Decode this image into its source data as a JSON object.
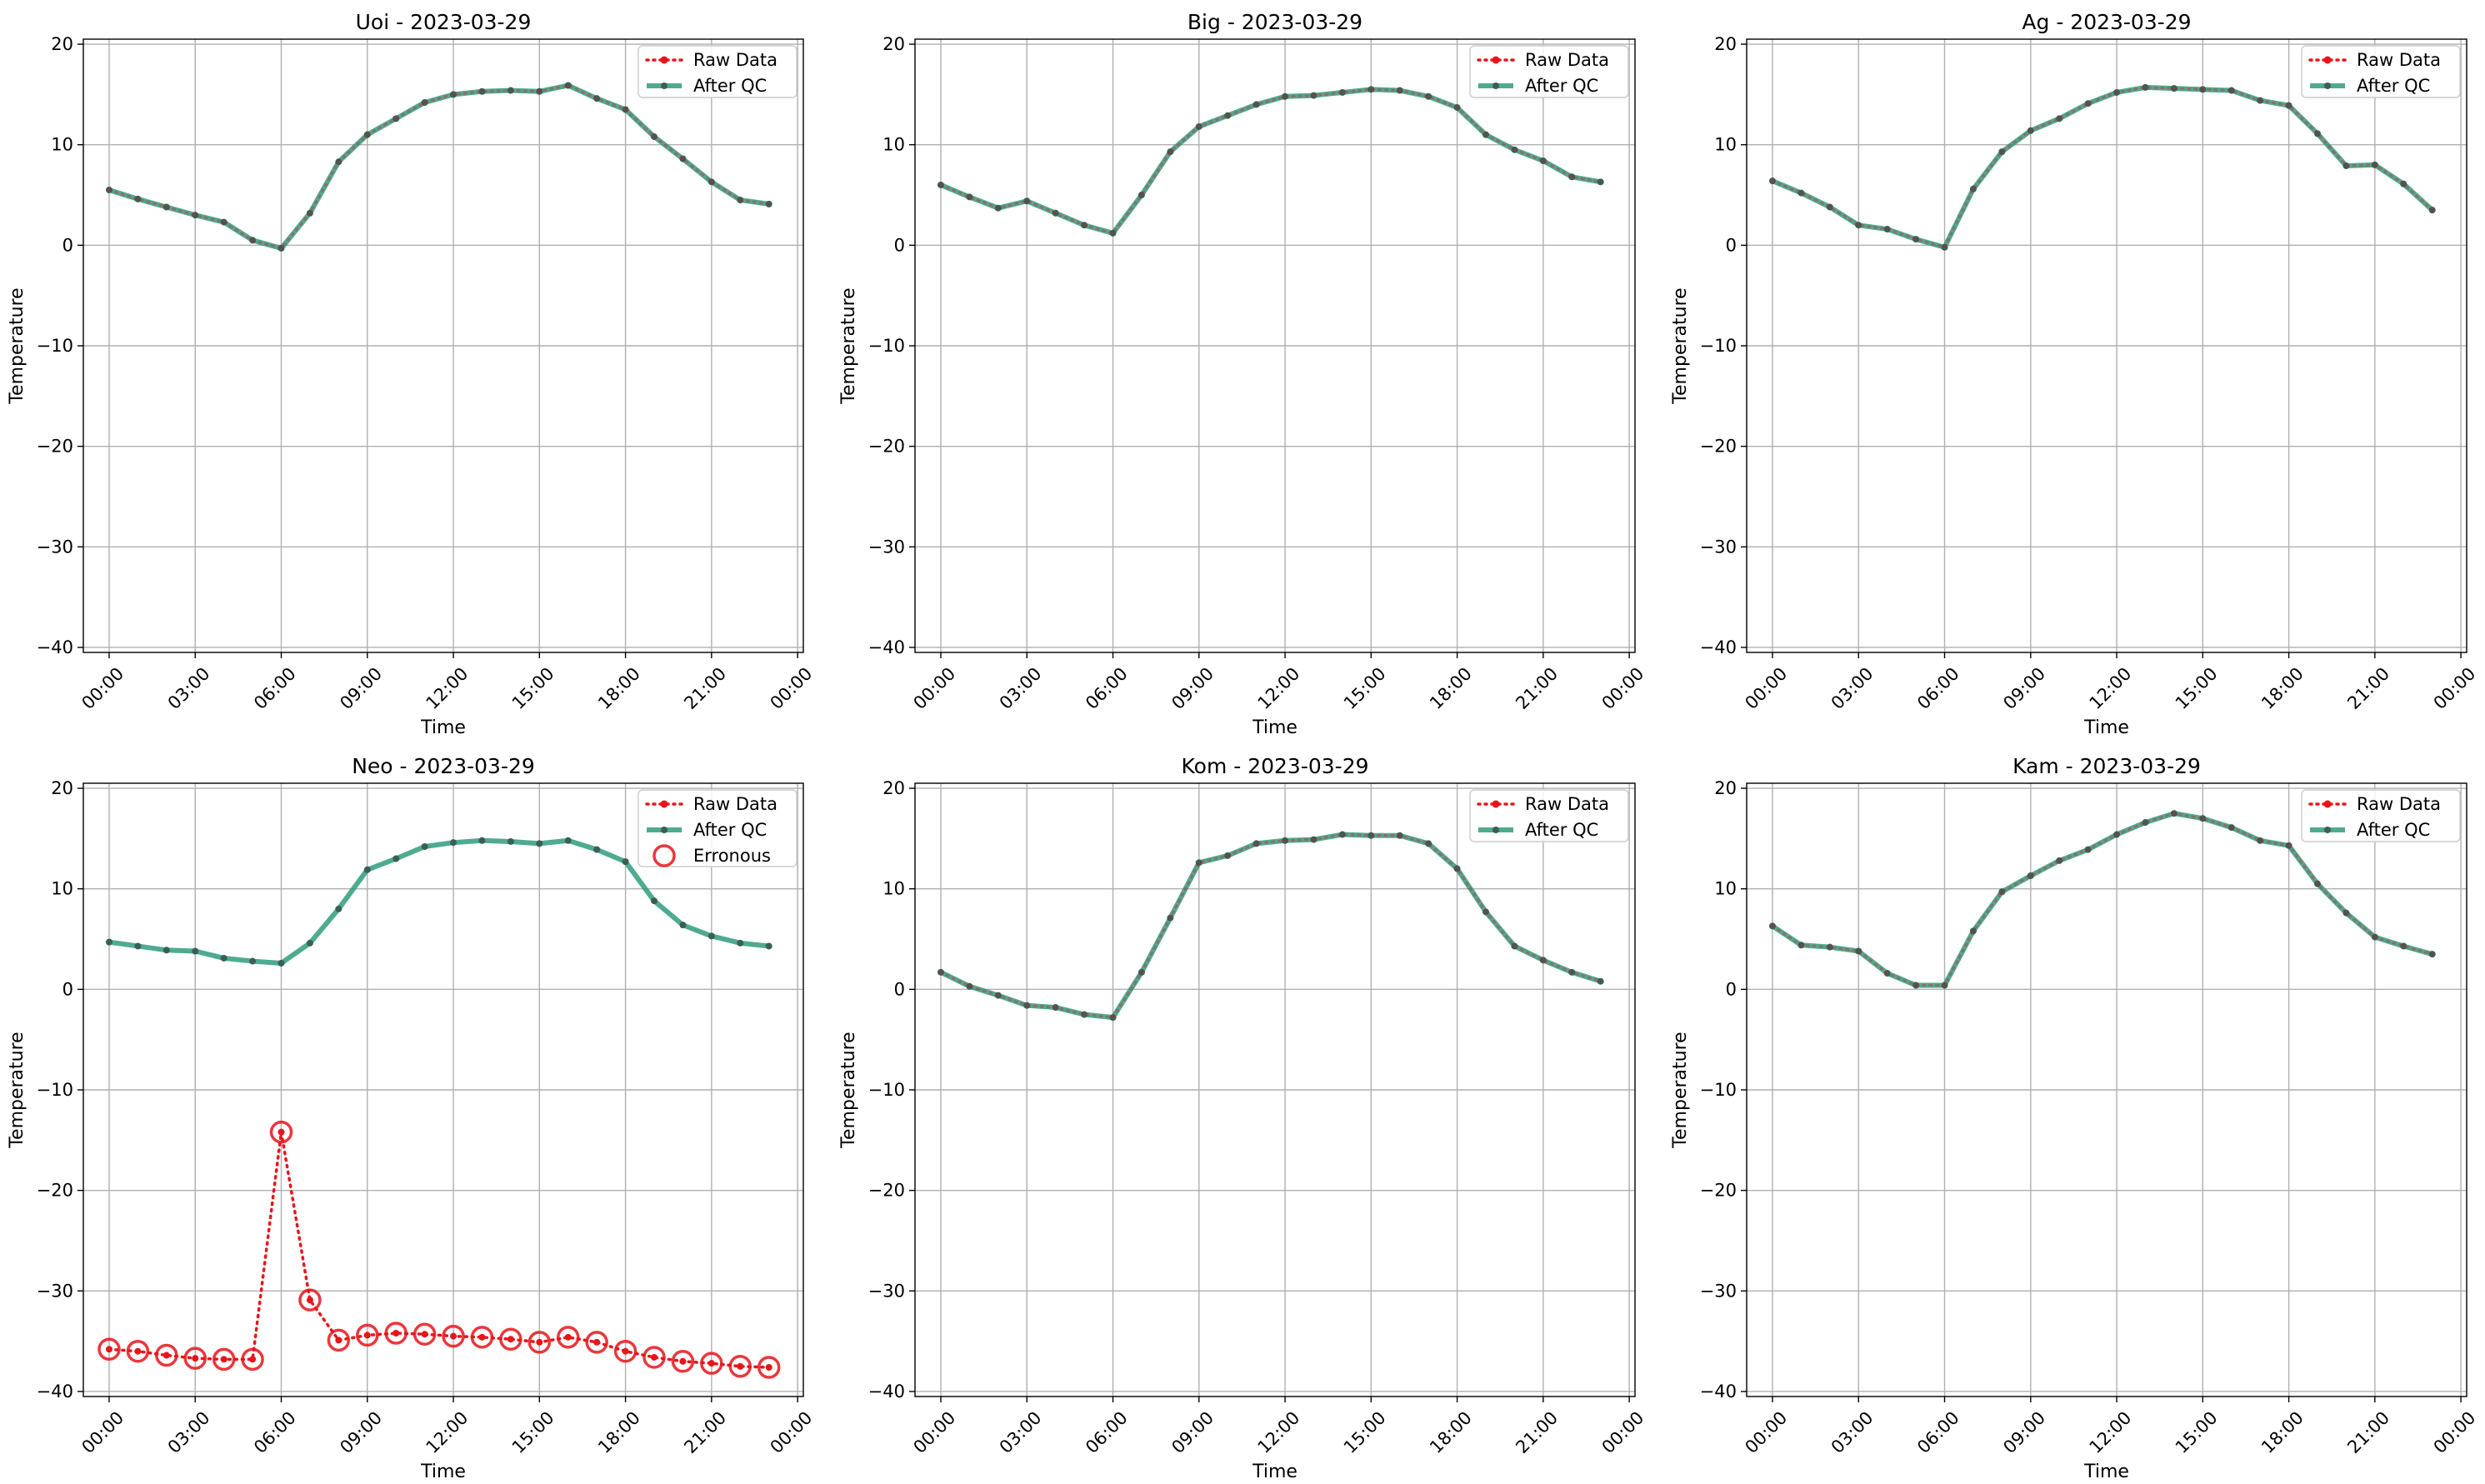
{
  "figure": {
    "xlabel": "Time",
    "ylabel": "Temperature",
    "legend": {
      "raw_label": "Raw Data",
      "qc_label": "After QC",
      "err_label": "Erronous"
    }
  },
  "colors": {
    "raw": "#e8141a",
    "qc": "#2f9c7f",
    "point": "#3a5f55",
    "grid": "#b0b0b0"
  },
  "chart_data": [
    {
      "type": "line",
      "title": "Uoi - 2023-03-29",
      "xlabel": "Time",
      "ylabel": "Temperature",
      "x": [
        "00:00",
        "01:00",
        "02:00",
        "03:00",
        "04:00",
        "05:00",
        "06:00",
        "07:00",
        "08:00",
        "09:00",
        "10:00",
        "11:00",
        "12:00",
        "13:00",
        "14:00",
        "15:00",
        "16:00",
        "17:00",
        "18:00",
        "19:00",
        "20:00",
        "21:00",
        "22:00",
        "23:00"
      ],
      "xticks": [
        "00:00",
        "03:00",
        "06:00",
        "09:00",
        "12:00",
        "15:00",
        "18:00",
        "21:00",
        "00:00"
      ],
      "yticks": [
        "20",
        "10",
        "0",
        "−10",
        "−20",
        "−30",
        "−40"
      ],
      "ylim": [
        -40.5,
        20.5
      ],
      "grid": true,
      "legend_position": "top-right",
      "series": [
        {
          "name": "Raw Data",
          "values": [
            5.5,
            4.6,
            3.8,
            3.0,
            2.3,
            0.5,
            -0.3,
            3.2,
            8.3,
            11.0,
            12.6,
            14.2,
            15.0,
            15.3,
            15.4,
            15.3,
            15.9,
            14.6,
            13.5,
            10.8,
            8.6,
            6.3,
            4.5,
            4.1
          ]
        },
        {
          "name": "After QC",
          "values": [
            5.5,
            4.6,
            3.8,
            3.0,
            2.3,
            0.5,
            -0.3,
            3.2,
            8.3,
            11.0,
            12.6,
            14.2,
            15.0,
            15.3,
            15.4,
            15.3,
            15.9,
            14.6,
            13.5,
            10.8,
            8.6,
            6.3,
            4.5,
            4.1
          ]
        }
      ],
      "erroneous_hours": []
    },
    {
      "type": "line",
      "title": "Big - 2023-03-29",
      "xlabel": "Time",
      "ylabel": "Temperature",
      "x": [
        "00:00",
        "01:00",
        "02:00",
        "03:00",
        "04:00",
        "05:00",
        "06:00",
        "07:00",
        "08:00",
        "09:00",
        "10:00",
        "11:00",
        "12:00",
        "13:00",
        "14:00",
        "15:00",
        "16:00",
        "17:00",
        "18:00",
        "19:00",
        "20:00",
        "21:00",
        "22:00",
        "23:00"
      ],
      "xticks": [
        "00:00",
        "03:00",
        "06:00",
        "09:00",
        "12:00",
        "15:00",
        "18:00",
        "21:00",
        "00:00"
      ],
      "yticks": [
        "20",
        "10",
        "0",
        "−10",
        "−20",
        "−30",
        "−40"
      ],
      "ylim": [
        -40.5,
        20.5
      ],
      "grid": true,
      "legend_position": "top-right",
      "series": [
        {
          "name": "Raw Data",
          "values": [
            6.0,
            4.8,
            3.7,
            4.4,
            3.2,
            2.0,
            1.2,
            5.0,
            9.3,
            11.8,
            12.9,
            14.0,
            14.8,
            14.9,
            15.2,
            15.5,
            15.4,
            14.8,
            13.7,
            11.0,
            9.5,
            8.4,
            6.8,
            6.3
          ]
        },
        {
          "name": "After QC",
          "values": [
            6.0,
            4.8,
            3.7,
            4.4,
            3.2,
            2.0,
            1.2,
            5.0,
            9.3,
            11.8,
            12.9,
            14.0,
            14.8,
            14.9,
            15.2,
            15.5,
            15.4,
            14.8,
            13.7,
            11.0,
            9.5,
            8.4,
            6.8,
            6.3
          ]
        }
      ],
      "erroneous_hours": []
    },
    {
      "type": "line",
      "title": "Ag - 2023-03-29",
      "xlabel": "Time",
      "ylabel": "Temperature",
      "x": [
        "00:00",
        "01:00",
        "02:00",
        "03:00",
        "04:00",
        "05:00",
        "06:00",
        "07:00",
        "08:00",
        "09:00",
        "10:00",
        "11:00",
        "12:00",
        "13:00",
        "14:00",
        "15:00",
        "16:00",
        "17:00",
        "18:00",
        "19:00",
        "20:00",
        "21:00",
        "22:00",
        "23:00"
      ],
      "xticks": [
        "00:00",
        "03:00",
        "06:00",
        "09:00",
        "12:00",
        "15:00",
        "18:00",
        "21:00",
        "00:00"
      ],
      "yticks": [
        "20",
        "10",
        "0",
        "−10",
        "−20",
        "−30",
        "−40"
      ],
      "ylim": [
        -40.5,
        20.5
      ],
      "grid": true,
      "legend_position": "top-right",
      "series": [
        {
          "name": "Raw Data",
          "values": [
            6.4,
            5.2,
            3.8,
            2.0,
            1.6,
            0.6,
            -0.2,
            5.6,
            9.3,
            11.4,
            12.6,
            14.1,
            15.2,
            15.7,
            15.6,
            15.5,
            15.4,
            14.4,
            13.9,
            11.1,
            7.9,
            8.0,
            6.1,
            3.5
          ]
        },
        {
          "name": "After QC",
          "values": [
            6.4,
            5.2,
            3.8,
            2.0,
            1.6,
            0.6,
            -0.2,
            5.6,
            9.3,
            11.4,
            12.6,
            14.1,
            15.2,
            15.7,
            15.6,
            15.5,
            15.4,
            14.4,
            13.9,
            11.1,
            7.9,
            8.0,
            6.1,
            3.5
          ]
        }
      ],
      "erroneous_hours": []
    },
    {
      "type": "line",
      "title": "Neo - 2023-03-29",
      "xlabel": "Time",
      "ylabel": "Temperature",
      "x": [
        "00:00",
        "01:00",
        "02:00",
        "03:00",
        "04:00",
        "05:00",
        "06:00",
        "07:00",
        "08:00",
        "09:00",
        "10:00",
        "11:00",
        "12:00",
        "13:00",
        "14:00",
        "15:00",
        "16:00",
        "17:00",
        "18:00",
        "19:00",
        "20:00",
        "21:00",
        "22:00",
        "23:00"
      ],
      "xticks": [
        "00:00",
        "03:00",
        "06:00",
        "09:00",
        "12:00",
        "15:00",
        "18:00",
        "21:00",
        "00:00"
      ],
      "yticks": [
        "20",
        "10",
        "0",
        "−10",
        "−20",
        "−30",
        "−40"
      ],
      "ylim": [
        -40.5,
        20.5
      ],
      "grid": true,
      "legend_position": "top-right",
      "series": [
        {
          "name": "Raw Data",
          "values": [
            -35.8,
            -36.0,
            -36.4,
            -36.7,
            -36.8,
            -36.8,
            -14.2,
            -30.9,
            -34.9,
            -34.4,
            -34.2,
            -34.3,
            -34.5,
            -34.6,
            -34.8,
            -35.1,
            -34.6,
            -35.1,
            -36.0,
            -36.6,
            -37.0,
            -37.2,
            -37.5,
            -37.6
          ]
        },
        {
          "name": "After QC",
          "values": [
            4.7,
            4.3,
            3.9,
            3.8,
            3.1,
            2.8,
            2.6,
            4.6,
            8.0,
            11.9,
            13.0,
            14.2,
            14.6,
            14.8,
            14.7,
            14.5,
            14.8,
            13.9,
            12.7,
            8.8,
            6.4,
            5.3,
            4.6,
            4.3
          ]
        }
      ],
      "erroneous_hours": [
        0,
        1,
        2,
        3,
        4,
        5,
        6,
        7,
        8,
        9,
        10,
        11,
        12,
        13,
        14,
        15,
        16,
        17,
        18,
        19,
        20,
        21,
        22,
        23
      ]
    },
    {
      "type": "line",
      "title": "Kom - 2023-03-29",
      "xlabel": "Time",
      "ylabel": "Temperature",
      "x": [
        "00:00",
        "01:00",
        "02:00",
        "03:00",
        "04:00",
        "05:00",
        "06:00",
        "07:00",
        "08:00",
        "09:00",
        "10:00",
        "11:00",
        "12:00",
        "13:00",
        "14:00",
        "15:00",
        "16:00",
        "17:00",
        "18:00",
        "19:00",
        "20:00",
        "21:00",
        "22:00",
        "23:00"
      ],
      "xticks": [
        "00:00",
        "03:00",
        "06:00",
        "09:00",
        "12:00",
        "15:00",
        "18:00",
        "21:00",
        "00:00"
      ],
      "yticks": [
        "20",
        "10",
        "0",
        "−10",
        "−20",
        "−30",
        "−40"
      ],
      "ylim": [
        -40.5,
        20.5
      ],
      "grid": true,
      "legend_position": "top-right",
      "series": [
        {
          "name": "Raw Data",
          "values": [
            1.7,
            0.3,
            -0.6,
            -1.6,
            -1.8,
            -2.5,
            -2.8,
            1.7,
            7.1,
            12.6,
            13.3,
            14.5,
            14.8,
            14.9,
            15.4,
            15.3,
            15.3,
            14.5,
            12.0,
            7.7,
            4.3,
            2.9,
            1.7,
            0.8
          ]
        },
        {
          "name": "After QC",
          "values": [
            1.7,
            0.3,
            -0.6,
            -1.6,
            -1.8,
            -2.5,
            -2.8,
            1.7,
            7.1,
            12.6,
            13.3,
            14.5,
            14.8,
            14.9,
            15.4,
            15.3,
            15.3,
            14.5,
            12.0,
            7.7,
            4.3,
            2.9,
            1.7,
            0.8
          ]
        }
      ],
      "erroneous_hours": []
    },
    {
      "type": "line",
      "title": "Kam - 2023-03-29",
      "xlabel": "Time",
      "ylabel": "Temperature",
      "x": [
        "00:00",
        "01:00",
        "02:00",
        "03:00",
        "04:00",
        "05:00",
        "06:00",
        "07:00",
        "08:00",
        "09:00",
        "10:00",
        "11:00",
        "12:00",
        "13:00",
        "14:00",
        "15:00",
        "16:00",
        "17:00",
        "18:00",
        "19:00",
        "20:00",
        "21:00",
        "22:00",
        "23:00"
      ],
      "xticks": [
        "00:00",
        "03:00",
        "06:00",
        "09:00",
        "12:00",
        "15:00",
        "18:00",
        "21:00",
        "00:00"
      ],
      "yticks": [
        "20",
        "10",
        "0",
        "−10",
        "−20",
        "−30",
        "−40"
      ],
      "ylim": [
        -40.5,
        20.5
      ],
      "grid": true,
      "legend_position": "top-right",
      "series": [
        {
          "name": "Raw Data",
          "values": [
            6.3,
            4.4,
            4.2,
            3.8,
            1.6,
            0.4,
            0.4,
            5.8,
            9.7,
            11.3,
            12.8,
            13.9,
            15.4,
            16.6,
            17.5,
            17.0,
            16.1,
            14.8,
            14.3,
            10.5,
            7.6,
            5.2,
            4.3,
            3.5
          ]
        },
        {
          "name": "After QC",
          "values": [
            6.3,
            4.4,
            4.2,
            3.8,
            1.6,
            0.4,
            0.4,
            5.8,
            9.7,
            11.3,
            12.8,
            13.9,
            15.4,
            16.6,
            17.5,
            17.0,
            16.1,
            14.8,
            14.3,
            10.5,
            7.6,
            5.2,
            4.3,
            3.5
          ]
        }
      ],
      "erroneous_hours": []
    }
  ]
}
